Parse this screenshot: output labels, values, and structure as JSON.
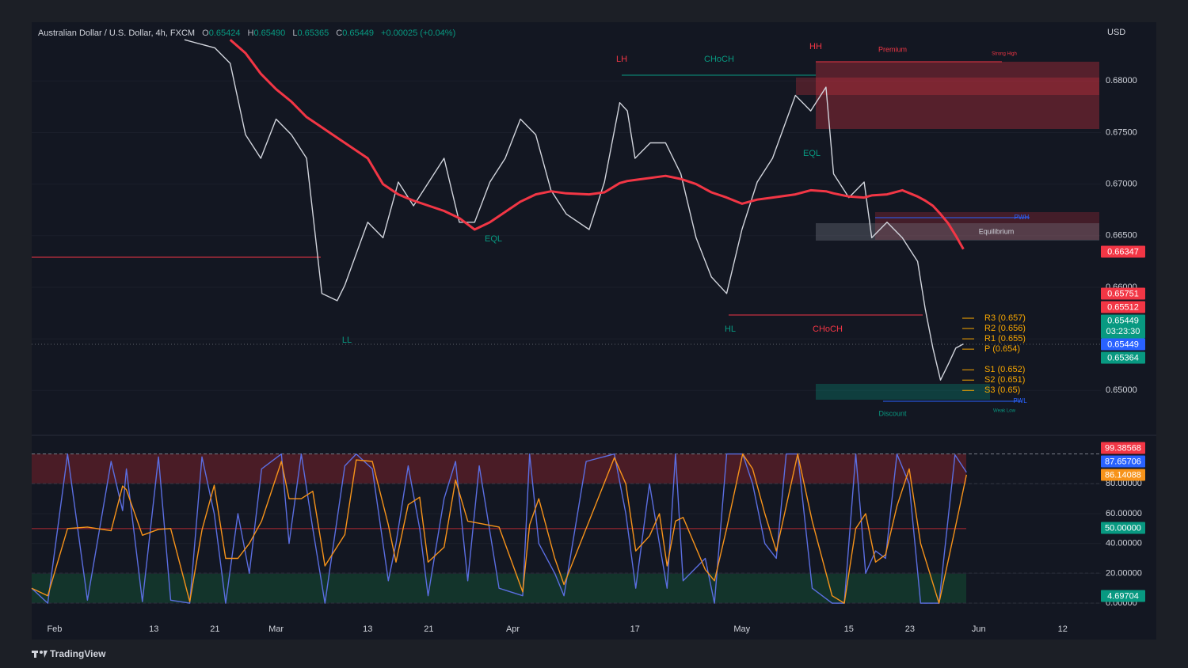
{
  "header": {
    "title": "Australian Dollar / U.S. Dollar, 4h, FXCM",
    "ohlc": [
      {
        "label": "O",
        "value": "0.65424"
      },
      {
        "label": "H",
        "value": "0.65490"
      },
      {
        "label": "L",
        "value": "0.65365"
      },
      {
        "label": "C",
        "value": "0.65449"
      }
    ],
    "change": "+0.00025 (+0.04%)",
    "currency": "USD"
  },
  "chart_data": [
    {
      "type": "line",
      "x": [
        17,
        21,
        23,
        25,
        27,
        29,
        31,
        33,
        35,
        37,
        38,
        41,
        43,
        45,
        47,
        49,
        51,
        53,
        55,
        57,
        59,
        61,
        63,
        65,
        67,
        70,
        72,
        74,
        75,
        76,
        78,
        80,
        82,
        84,
        86,
        88,
        90,
        92,
        94,
        97,
        99,
        101,
        102,
        104,
        106,
        107,
        109,
        111,
        113,
        114,
        115,
        116,
        117,
        118,
        119
      ],
      "series": [
        {
          "color": "#d1d4dc",
          "values": [
            0.684,
            0.6832,
            0.6817,
            0.6748,
            0.6725,
            0.6763,
            0.6748,
            0.6725,
            0.6594,
            0.6587,
            0.6602,
            0.6663,
            0.6648,
            0.6702,
            0.6679,
            0.6702,
            0.6725,
            0.6663,
            0.6663,
            0.6702,
            0.6725,
            0.6763,
            0.6748,
            0.6694,
            0.6671,
            0.6656,
            0.6702,
            0.6779,
            0.6771,
            0.6725,
            0.674,
            0.674,
            0.671,
            0.6648,
            0.661,
            0.6594,
            0.6656,
            0.6702,
            0.6725,
            0.6786,
            0.6771,
            0.6794,
            0.671,
            0.6687,
            0.6702,
            0.6648,
            0.6663,
            0.6648,
            0.6625,
            0.6579,
            0.6541,
            0.651,
            0.6525,
            0.6541,
            0.6545
          ]
        },
        {
          "color": "#f23645",
          "values": [
            null,
            null,
            0.684,
            0.6827,
            0.6807,
            0.6792,
            0.678,
            0.6765,
            0.6755,
            0.6745,
            0.674,
            0.6725,
            0.67,
            0.669,
            0.6684,
            0.6679,
            0.6674,
            0.6667,
            0.6656,
            0.6663,
            0.6673,
            0.6683,
            0.669,
            0.6693,
            0.6691,
            0.669,
            0.6692,
            0.6701,
            0.6703,
            0.6704,
            0.6706,
            0.6708,
            0.6705,
            0.67,
            0.6692,
            0.6687,
            0.6681,
            0.6685,
            0.6687,
            0.669,
            0.6694,
            0.6693,
            0.6691,
            0.6688,
            0.6687,
            0.6689,
            0.669,
            0.6694,
            0.6688,
            0.6684,
            0.6679,
            0.6671,
            0.6662,
            0.665,
            0.6637
          ]
        }
      ],
      "xlim": [
        -3,
        137
      ],
      "xticks": [
        {
          "value": 0,
          "label": "Feb"
        },
        13,
        21,
        {
          "value": 29,
          "label": "Mar"
        },
        {
          "value": 41,
          "label": "13"
        },
        {
          "value": 49,
          "label": "21"
        },
        {
          "value": 60,
          "label": "Apr"
        },
        {
          "value": 76,
          "label": "17"
        },
        {
          "value": 90,
          "label": "May"
        },
        {
          "value": 104,
          "label": "15"
        },
        {
          "value": 112,
          "label": "23"
        },
        {
          "value": 121,
          "label": "Jun"
        },
        {
          "value": 132,
          "label": "12"
        }
      ],
      "ylim": [
        0.6458,
        0.6857
      ],
      "yticks": [
        {
          "value": 0.65,
          "label": "0.65000"
        },
        {
          "value": 0.655,
          "label": "0.65500"
        },
        {
          "value": 0.66,
          "label": "0.66000"
        },
        {
          "value": 0.665,
          "label": "0.66500"
        },
        {
          "value": 0.67,
          "label": "0.67000"
        },
        {
          "value": 0.675,
          "label": "0.67500"
        },
        {
          "value": 0.68,
          "label": "0.68000"
        }
      ],
      "price_labels": [
        {
          "value": 0.66347,
          "color": "#f23645"
        },
        {
          "value": 0.65751,
          "color": "#f23645"
        },
        {
          "value": 0.65512,
          "color": "#f23645"
        },
        {
          "value": 0.65449,
          "color": "#089981",
          "countdown": "03:23:30"
        },
        {
          "value": 0.65449,
          "color": "#2962ff"
        },
        {
          "value": 0.65364,
          "color": "#089981"
        }
      ],
      "pivots": [
        {
          "label": "R3 (0.657)",
          "value": 0.657
        },
        {
          "label": "R2 (0.656)",
          "value": 0.656
        },
        {
          "label": "R1 (0.655)",
          "value": 0.655
        },
        {
          "label": "P (0.654)",
          "value": 0.654
        },
        {
          "label": "S1 (0.652)",
          "value": 0.652
        },
        {
          "label": "S2 (0.651)",
          "value": 0.651
        },
        {
          "label": "S3 (0.65)",
          "value": 0.65
        }
      ],
      "annotations": [
        "LH",
        "CHoCH",
        "HH",
        "Premium",
        "Strong High",
        "EQL",
        "EQL",
        "HL",
        "LL",
        "CHoCH",
        "Equilibrium",
        "PWH",
        "PWL",
        "Discount",
        "Weak Low"
      ]
    },
    {
      "type": "line",
      "x": [
        -3,
        -0.9,
        1.7,
        4.3,
        7.4,
        8.9,
        9.4,
        11.5,
        13.6,
        15.2,
        17.7,
        19.3,
        20.9,
        22.4,
        24.0,
        25.5,
        27.1,
        29.7,
        30.7,
        32.3,
        33.8,
        35.4,
        38.0,
        39.5,
        41.6,
        43.7,
        44.7,
        46.3,
        47.8,
        48.9,
        51.0,
        52.5,
        54.1,
        55.6,
        58.2,
        61.3,
        62.2,
        63.4,
        65.5,
        66.7,
        69.6,
        73.3,
        74.8,
        76.1,
        77.9,
        79.2,
        80.2,
        81.3,
        82.3,
        85.2,
        86.4,
        88.0,
        90.1,
        91.4,
        93.0,
        94.5,
        95.8,
        97.3,
        99.2,
        101.8,
        103.4,
        104.9,
        106.2,
        107.5,
        108.8,
        110.3,
        111.9,
        113.4,
        115.8,
        117.9,
        119.4
      ],
      "series": [
        {
          "color": "#5b6ee1",
          "values": [
            10,
            0,
            100,
            2,
            95,
            62,
            90,
            1,
            98,
            2,
            0,
            98,
            60,
            0,
            60,
            20,
            90,
            100,
            40,
            100,
            50,
            0,
            92,
            100,
            90,
            15,
            40,
            92,
            50,
            5,
            70,
            95,
            15,
            92,
            10,
            5,
            100,
            40,
            20,
            5,
            95,
            100,
            60,
            10,
            80,
            40,
            10,
            100,
            15,
            30,
            0,
            100,
            100,
            80,
            40,
            30,
            100,
            100,
            10,
            0,
            0,
            100,
            20,
            35,
            30,
            100,
            80,
            0,
            0,
            99.4,
            87.7
          ]
        },
        {
          "color": "#f7931a",
          "values": [
            10,
            5,
            50,
            51,
            48.5,
            78.5,
            76,
            45.5,
            49.5,
            50,
            1,
            49,
            79,
            30,
            30,
            40,
            55,
            95,
            70,
            70,
            75,
            25,
            46,
            96,
            95,
            52.5,
            27.5,
            66,
            71,
            27.5,
            37.5,
            82.5,
            55,
            53.5,
            51,
            7.5,
            52.5,
            70,
            30,
            12.5,
            50,
            97.5,
            80,
            35,
            45,
            60,
            25,
            55,
            57.5,
            22.5,
            15,
            50,
            100,
            90,
            60,
            35,
            65,
            100,
            55,
            5,
            0,
            50,
            60,
            27.5,
            32.5,
            65,
            90,
            40,
            0,
            49.7,
            86.1
          ]
        }
      ],
      "xlim": [
        -3,
        137
      ],
      "ylim": [
        -9.5,
        110.9
      ],
      "yticks": [
        {
          "value": 0,
          "label": "0.00000"
        },
        {
          "value": 20,
          "label": "20.00000"
        },
        {
          "value": 40,
          "label": "40.00000"
        },
        {
          "value": 60,
          "label": "60.00000"
        },
        {
          "value": 80,
          "label": "80.00000"
        }
      ],
      "levels": [
        100,
        80,
        20,
        0
      ],
      "midline": 50,
      "bands": [
        {
          "from": 80,
          "to": 100,
          "color": "#4a1c26"
        },
        {
          "from": 0,
          "to": 20,
          "color": "#13342b"
        }
      ],
      "price_labels": [
        {
          "value": 99.38568,
          "color": "#f23645"
        },
        {
          "value": 87.65706,
          "color": "#2962ff"
        },
        {
          "value": 86.14088,
          "color": "#f7931a"
        },
        {
          "value": 50,
          "label": "50.00000",
          "color": "#089981"
        },
        {
          "value": 4.69704,
          "color": "#089981"
        }
      ]
    }
  ],
  "footer": {
    "brand": "TradingView"
  }
}
